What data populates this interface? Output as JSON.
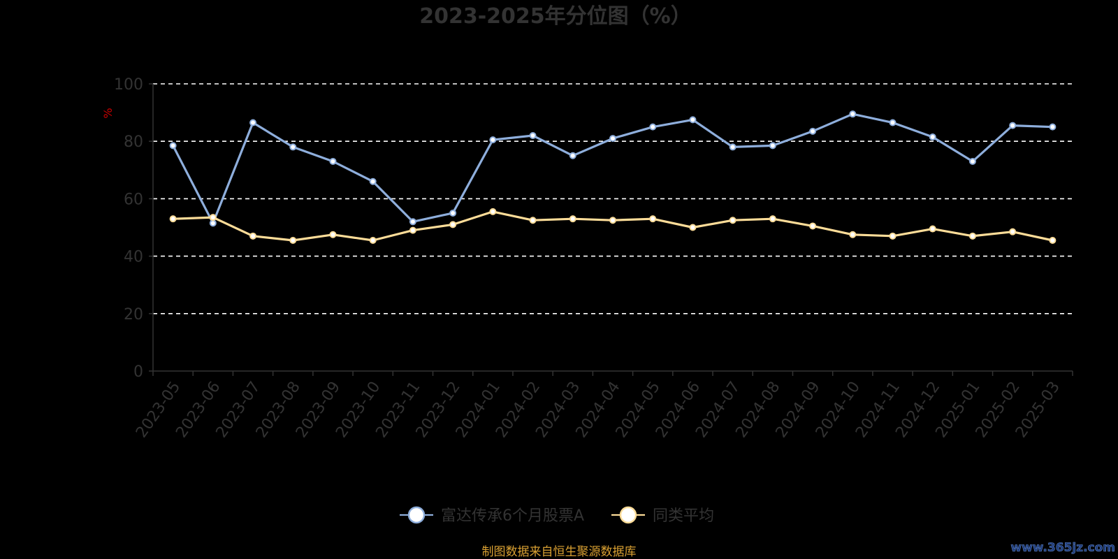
{
  "chart_data": {
    "type": "line",
    "title": "2023-2025年分位图（%）",
    "ylabel": "%",
    "ylim": [
      0,
      100
    ],
    "yticks": [
      0,
      20,
      40,
      60,
      80,
      100
    ],
    "grid": true,
    "legend_position": "bottom-center",
    "categories": [
      "2023-05",
      "2023-06",
      "2023-07",
      "2023-08",
      "2023-09",
      "2023-10",
      "2023-11",
      "2023-12",
      "2024-01",
      "2024-02",
      "2024-03",
      "2024-04",
      "2024-05",
      "2024-06",
      "2024-07",
      "2024-08",
      "2024-09",
      "2024-10",
      "2024-11",
      "2024-12",
      "2025-01",
      "2025-02",
      "2025-03"
    ],
    "series": [
      {
        "name": "富达传承6个月股票A",
        "color": "#8eaedc",
        "values": [
          78.5,
          51.5,
          86.5,
          78,
          73,
          66,
          52,
          55,
          80.5,
          82,
          75,
          81,
          85,
          87.5,
          78,
          78.5,
          83.5,
          89.5,
          86.5,
          81.5,
          73,
          85.5,
          85
        ]
      },
      {
        "name": "同类平均",
        "color": "#fcdc98",
        "values": [
          53,
          53.5,
          47,
          45.5,
          47.5,
          45.5,
          49,
          51,
          55.5,
          52.5,
          53,
          52.5,
          53,
          50,
          52.5,
          53,
          50.5,
          47.5,
          47,
          49.5,
          47,
          48.5,
          45.5
        ]
      }
    ]
  },
  "source_note": "制图数据来自恒生聚源数据库",
  "watermark": "www.365jz.com"
}
